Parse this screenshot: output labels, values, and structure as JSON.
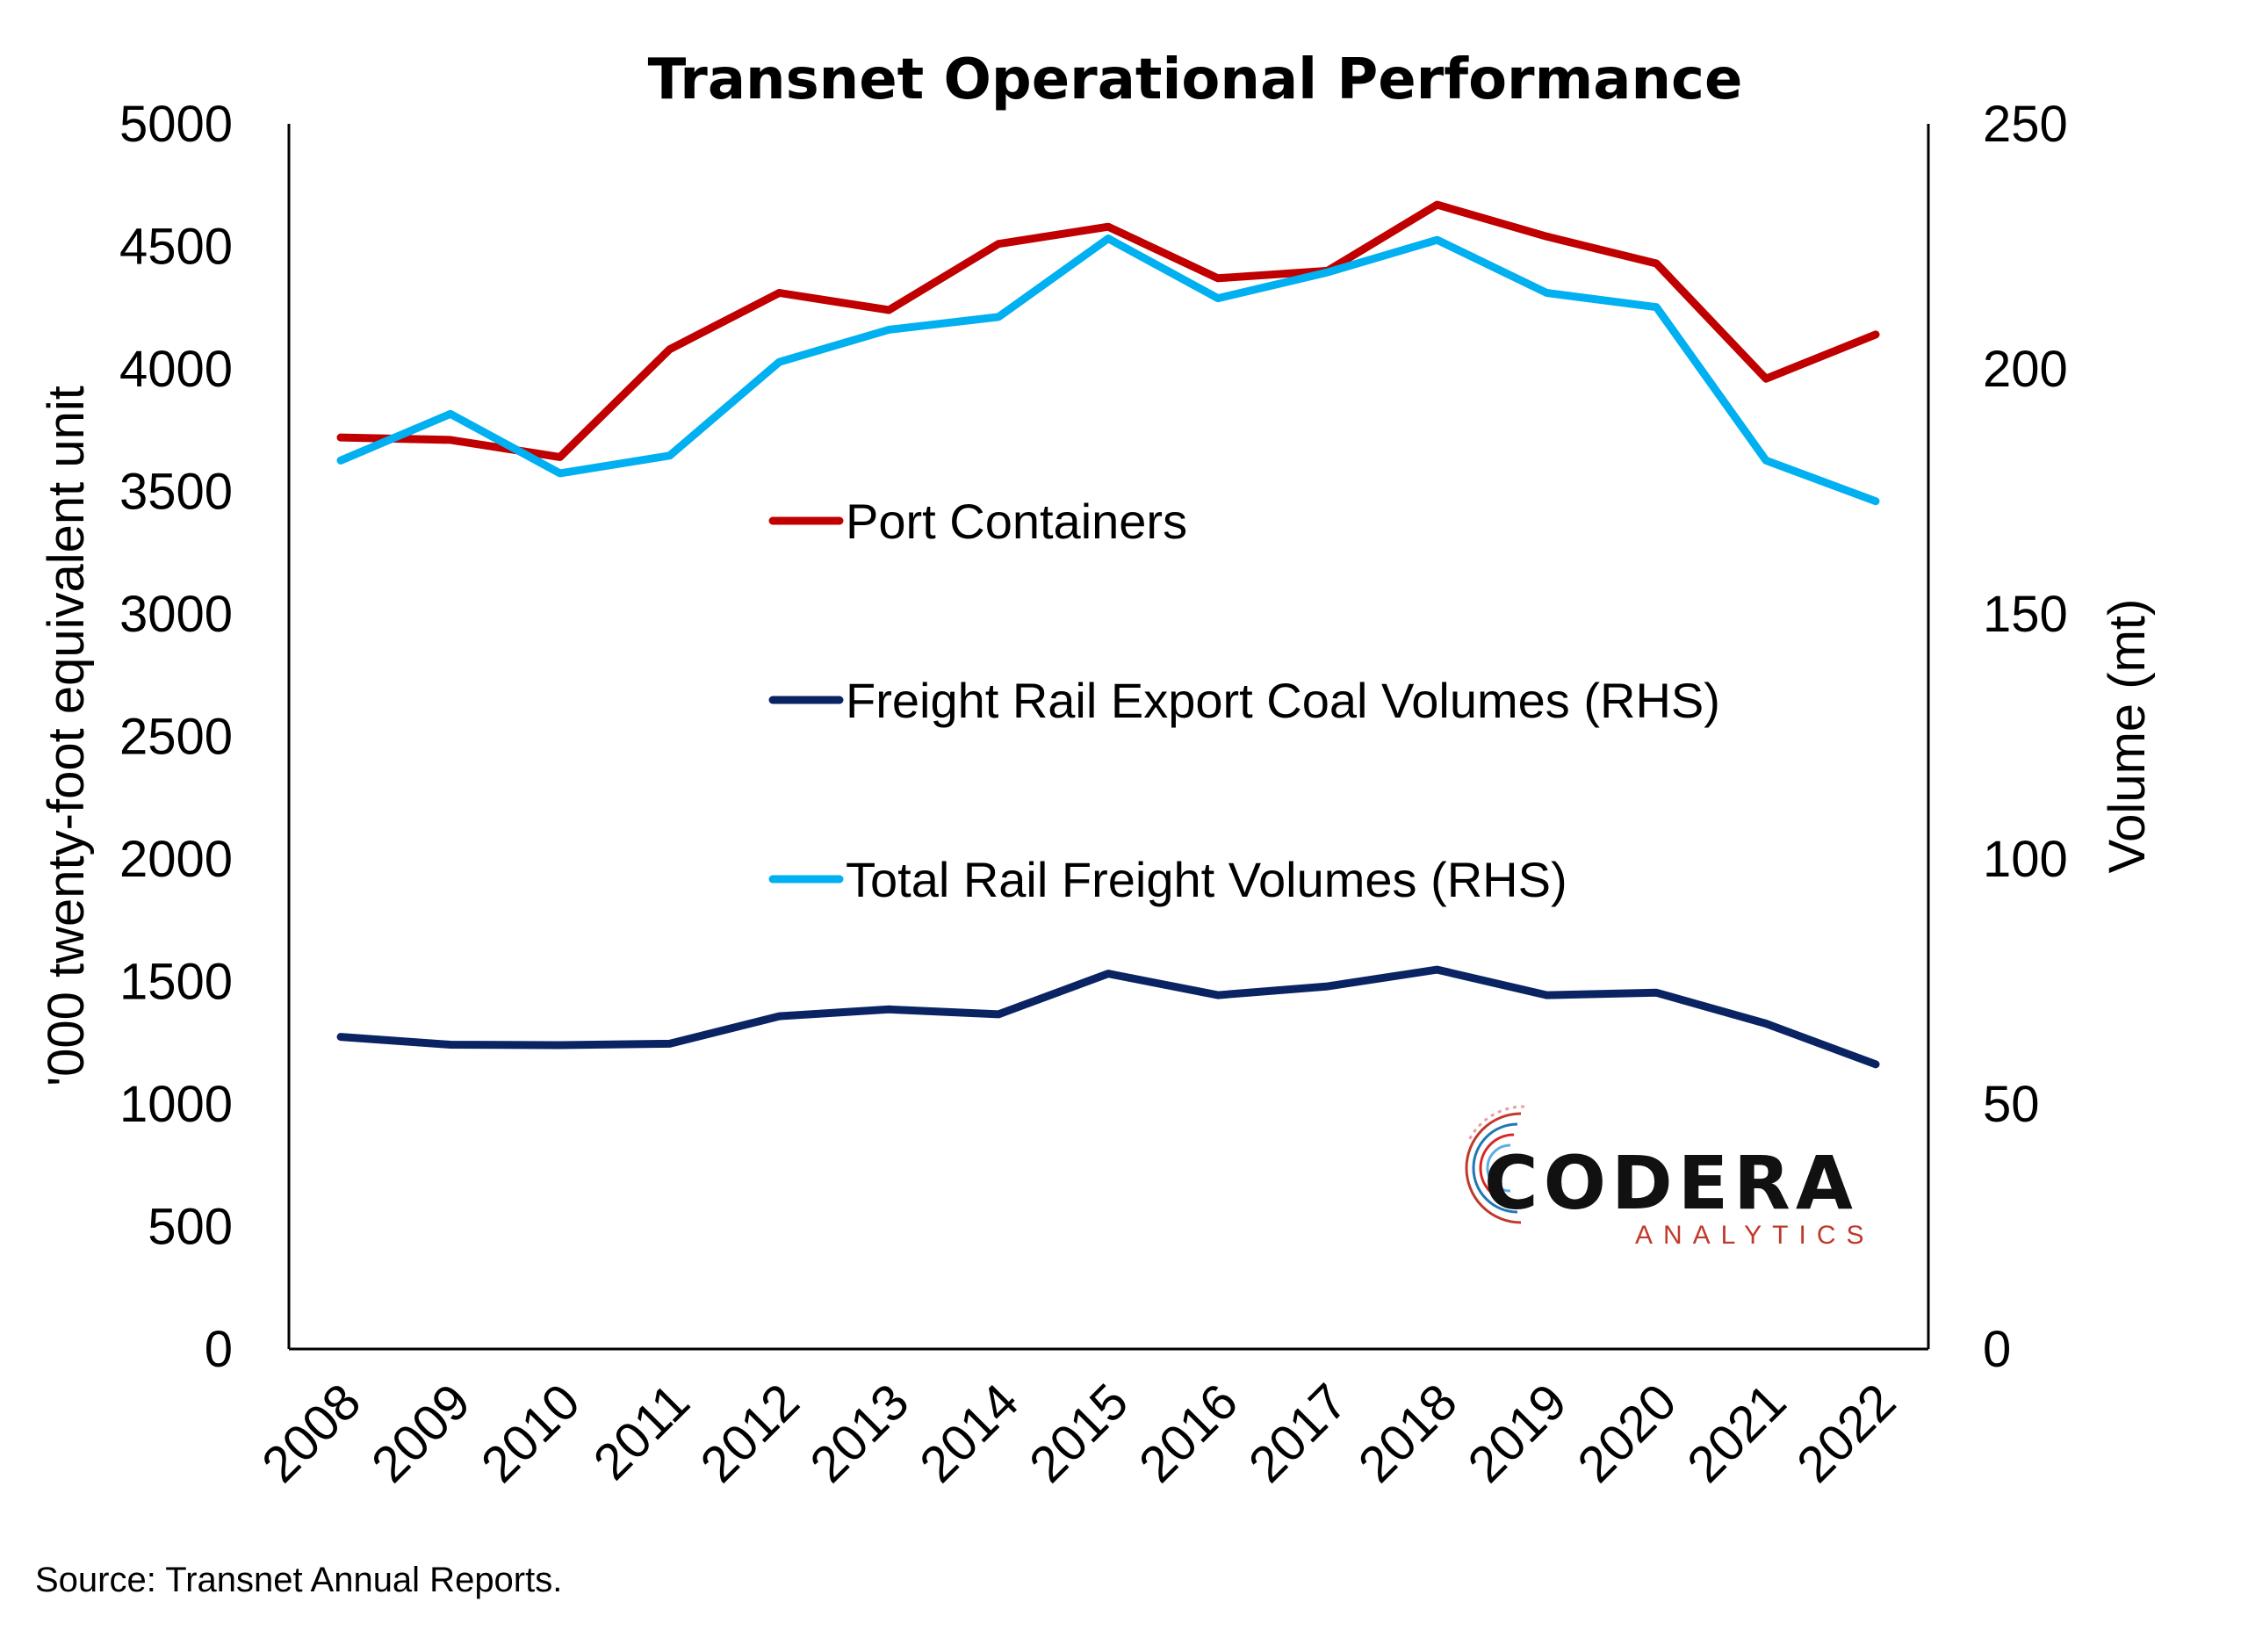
{
  "chart_data": {
    "type": "line",
    "title": "Transnet Operational Performance",
    "ylabel": "'000 twenty-foot equivalent unit",
    "y2label": "Volume (mt)",
    "xlabel": "",
    "x": [
      "2008",
      "2009",
      "2010",
      "2011",
      "2012",
      "2013",
      "2014",
      "2015",
      "2016",
      "2017",
      "2018",
      "2019",
      "2020",
      "2021",
      "2022"
    ],
    "ylim": [
      0,
      5000
    ],
    "y2lim": [
      0,
      250
    ],
    "yticks": [
      "0",
      "500",
      "1000",
      "1500",
      "2000",
      "2500",
      "3000",
      "3500",
      "4000",
      "4500",
      "5000"
    ],
    "y2ticks": [
      "0",
      "50",
      "100",
      "150",
      "200",
      "250"
    ],
    "grid": false,
    "legend_position": "center",
    "series": [
      {
        "name": "Port Containers",
        "axis": "left",
        "color": "#c00000",
        "values": [
          3720,
          3710,
          3640,
          4080,
          4310,
          4240,
          4510,
          4580,
          4370,
          4400,
          4670,
          4540,
          4430,
          3960,
          4140
        ]
      },
      {
        "name": "Freight Rail Export Coal Volumes (RHS)",
        "axis": "right",
        "color": "#0a2463",
        "values": [
          63.7,
          62.1,
          62.0,
          62.3,
          67.9,
          69.3,
          68.3,
          76.6,
          72.2,
          74.0,
          77.4,
          72.2,
          72.7,
          66.4,
          58.1
        ]
      },
      {
        "name": "Total Rail Freight Volumes (RHS)",
        "axis": "right",
        "color": "#00b0f0",
        "values": [
          181.3,
          190.8,
          178.7,
          182.3,
          201.4,
          208.0,
          210.6,
          226.6,
          214.4,
          219.7,
          226.3,
          215.5,
          212.6,
          181.3,
          173.0
        ]
      }
    ],
    "source": "Source: Transnet Annual Reports."
  },
  "logo": {
    "main": "CODERA",
    "sub": "ANALYTICS"
  }
}
